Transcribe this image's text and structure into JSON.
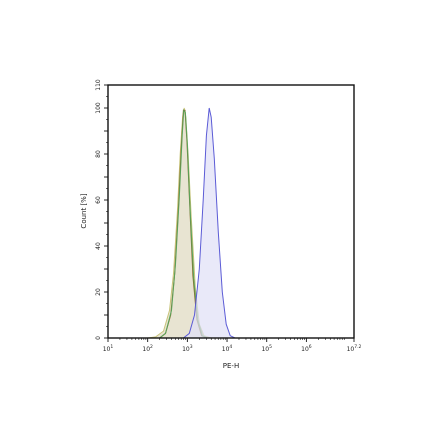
{
  "chart_data": {
    "type": "area",
    "title": "",
    "xlabel": "PE-H",
    "ylabel": "Count [%]",
    "x_scale": "log",
    "xlim_log10": [
      1,
      7.2
    ],
    "ylim": [
      0,
      110
    ],
    "x_tick_labels": [
      {
        "value": 1,
        "base": "10",
        "exp": "1"
      },
      {
        "value": 2,
        "base": "10",
        "exp": "2"
      },
      {
        "value": 3,
        "base": "10",
        "exp": "3"
      },
      {
        "value": 4,
        "base": "10",
        "exp": "4"
      },
      {
        "value": 5,
        "base": "10",
        "exp": "5"
      },
      {
        "value": 6,
        "base": "10",
        "exp": "6"
      },
      {
        "value": 7.2,
        "base": "10",
        "exp": "7.2"
      }
    ],
    "y_ticks": [
      0,
      20,
      40,
      60,
      80,
      100,
      110
    ],
    "grid": false,
    "legend": "none",
    "series": [
      {
        "color": "#c8c47a",
        "fill": "#d8d2b4",
        "fill_opacity": 0.6,
        "points": [
          [
            1.0,
            0
          ],
          [
            2.0,
            0
          ],
          [
            2.2,
            0.5
          ],
          [
            2.4,
            3
          ],
          [
            2.55,
            12
          ],
          [
            2.65,
            28
          ],
          [
            2.75,
            55
          ],
          [
            2.82,
            80
          ],
          [
            2.88,
            96
          ],
          [
            2.92,
            100
          ],
          [
            2.96,
            96
          ],
          [
            3.02,
            80
          ],
          [
            3.1,
            52
          ],
          [
            3.2,
            22
          ],
          [
            3.3,
            6
          ],
          [
            3.42,
            1
          ],
          [
            3.6,
            0
          ],
          [
            7.2,
            0
          ]
        ]
      },
      {
        "color": "#8a6a2a",
        "fill": "none",
        "fill_opacity": 0,
        "points": [
          [
            1.0,
            0
          ],
          [
            2.3,
            0
          ],
          [
            2.45,
            2
          ],
          [
            2.58,
            10
          ],
          [
            2.68,
            28
          ],
          [
            2.78,
            58
          ],
          [
            2.85,
            84
          ],
          [
            2.9,
            99
          ],
          [
            2.94,
            99
          ],
          [
            2.99,
            85
          ],
          [
            3.06,
            58
          ],
          [
            3.14,
            27
          ],
          [
            3.24,
            8
          ],
          [
            3.36,
            1
          ],
          [
            3.5,
            0
          ],
          [
            7.2,
            0
          ]
        ]
      },
      {
        "color": "#5aa35a",
        "fill": "none",
        "fill_opacity": 0,
        "points": [
          [
            1.0,
            0
          ],
          [
            2.3,
            0
          ],
          [
            2.45,
            2
          ],
          [
            2.6,
            12
          ],
          [
            2.7,
            32
          ],
          [
            2.8,
            62
          ],
          [
            2.87,
            88
          ],
          [
            2.91,
            99
          ],
          [
            2.95,
            98
          ],
          [
            3.0,
            84
          ],
          [
            3.07,
            56
          ],
          [
            3.16,
            26
          ],
          [
            3.26,
            8
          ],
          [
            3.38,
            1
          ],
          [
            3.5,
            0
          ],
          [
            7.2,
            0
          ]
        ]
      },
      {
        "color": "#5b5bd6",
        "fill": "#e0e0f6",
        "fill_opacity": 0.7,
        "points": [
          [
            1.0,
            0
          ],
          [
            2.9,
            0
          ],
          [
            3.05,
            2
          ],
          [
            3.18,
            10
          ],
          [
            3.3,
            30
          ],
          [
            3.4,
            60
          ],
          [
            3.48,
            88
          ],
          [
            3.55,
            100
          ],
          [
            3.6,
            96
          ],
          [
            3.68,
            78
          ],
          [
            3.78,
            46
          ],
          [
            3.88,
            20
          ],
          [
            3.98,
            6
          ],
          [
            4.08,
            1
          ],
          [
            4.2,
            0
          ],
          [
            7.2,
            0
          ]
        ]
      }
    ]
  }
}
